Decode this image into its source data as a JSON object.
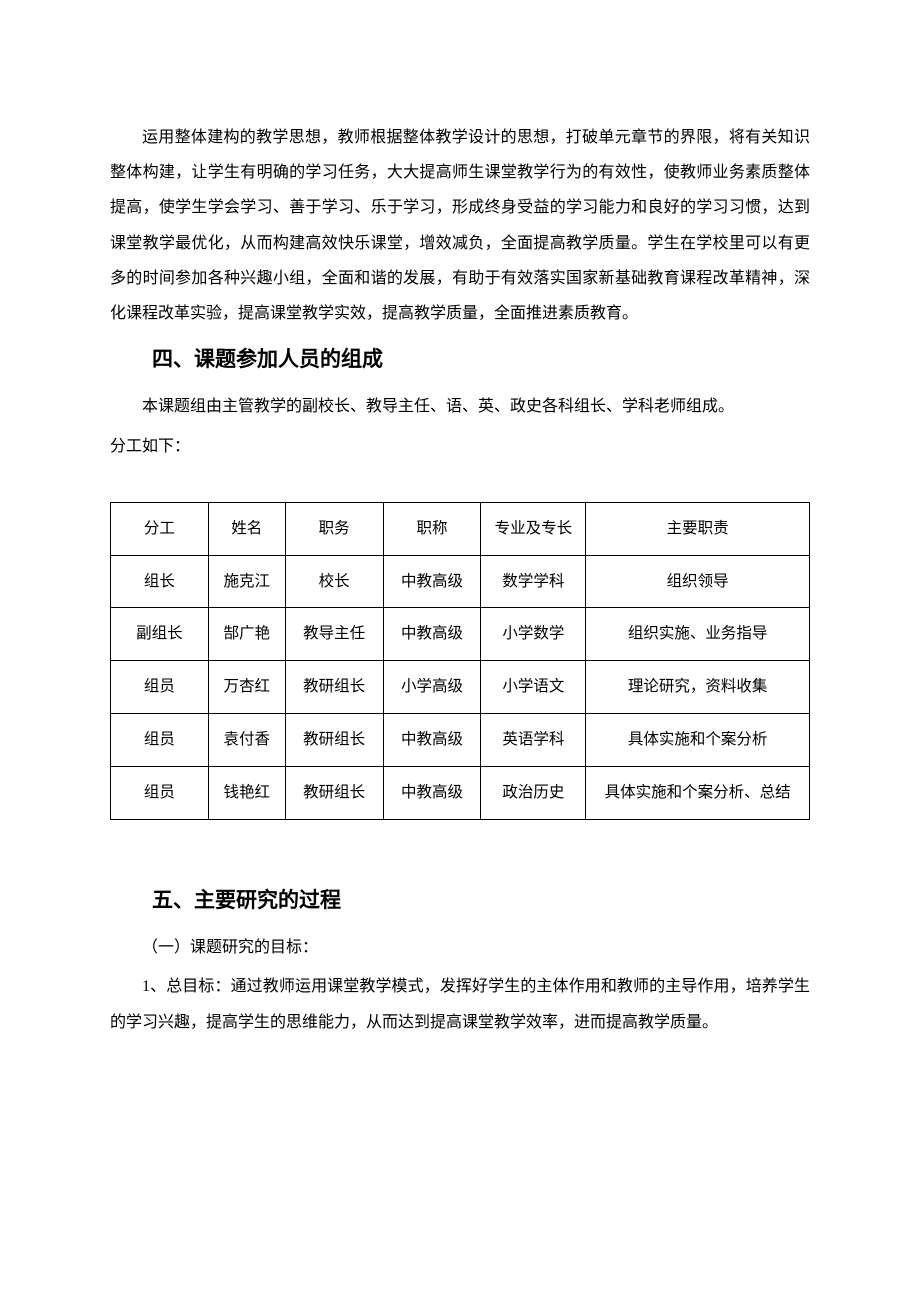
{
  "paragraphs": {
    "p1": "运用整体建构的教学思想，教师根据整体教学设计的思想，打破单元章节的界限，将有关知识整体构建，让学生有明确的学习任务，大大提高师生课堂教学行为的有效性，使教师业务素质整体提高，使学生学会学习、善于学习、乐于学习，形成终身受益的学习能力和良好的学习习惯，达到课堂教学最优化，从而构建高效快乐课堂，增效减负，全面提高教学质量。学生在学校里可以有更多的时间参加各种兴趣小组，全面和谐的发展，有助于有效落实国家新基础教育课程改革精神，深化课程改革实验，提高课堂教学实效，提高教学质量，全面推进素质教育。",
    "h4": "四、课题参加人员的组成",
    "p2a": "本课题组由主管教学的副校长、教导主任、语、英、政史各科组长、学科老师组成。",
    "p2b": "分工如下：",
    "h5": "五、主要研究的过程",
    "p3": "（一）课题研究的目标：",
    "p4": "1、总目标：通过教师运用课堂教学模式，发挥好学生的主体作用和教师的主导作用，培养学生的学习兴趣，提高学生的思维能力，从而达到提高课堂教学效率，进而提高教学质量。"
  },
  "table": {
    "headers": {
      "c1": "分工",
      "c2": "姓名",
      "c3": "职务",
      "c4": "职称",
      "c5": "专业及专长",
      "c6": "主要职责"
    },
    "rows": {
      "r1": {
        "c1": "组长",
        "c2": "施克江",
        "c3": "校长",
        "c4": "中教高级",
        "c5": "数学学科",
        "c6": "组织领导"
      },
      "r2": {
        "c1": "副组长",
        "c2": "郜广艳",
        "c3": "教导主任",
        "c4": "中教高级",
        "c5": "小学数学",
        "c6": "组织实施、业务指导"
      },
      "r3": {
        "c1": "组员",
        "c2": "万杏红",
        "c3": "教研组长",
        "c4": "小学高级",
        "c5": "小学语文",
        "c6": "理论研究，资料收集"
      },
      "r4": {
        "c1": "组员",
        "c2": "袁付香",
        "c3": "教研组长",
        "c4": "中教高级",
        "c5": "英语学科",
        "c6": "具体实施和个案分析"
      },
      "r5": {
        "c1": "组员",
        "c2": "钱艳红",
        "c3": "教研组长",
        "c4": "中教高级",
        "c5": "政治历史",
        "c6": "具体实施和个案分析、总结"
      }
    }
  },
  "colors": {
    "text": "#000000",
    "background": "#ffffff",
    "border": "#000000"
  }
}
